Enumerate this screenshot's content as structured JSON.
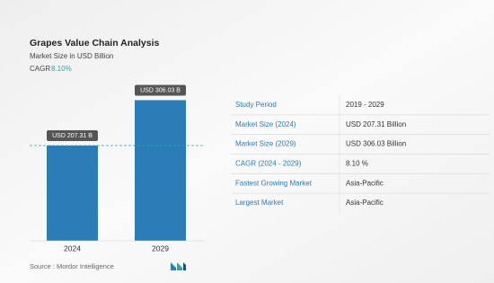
{
  "chart_data": {
    "type": "bar",
    "title": "Grapes Value Chain Analysis",
    "subtitle": "Market Size in USD Billion",
    "cagr_label": "CAGR",
    "cagr_value": "8.10%",
    "categories": [
      "2024",
      "2029"
    ],
    "values": [
      207.31,
      306.03
    ],
    "value_labels": [
      "USD 207.31 B",
      "USD 306.03 B"
    ],
    "color": "#2b7db8",
    "ylim": [
      0,
      350
    ]
  },
  "table": {
    "rows": [
      [
        "Study Period",
        "2019 - 2029"
      ],
      [
        "Market Size (2024)",
        "USD 207.31 Billion"
      ],
      [
        "Market Size (2029)",
        "USD 306.03 Billion"
      ],
      [
        "CAGR (2024 - 2029)",
        "8.10 %"
      ],
      [
        "Fastest Growing Market",
        "Asia-Pacific"
      ],
      [
        "Largest Market",
        "Asia-Pacific"
      ]
    ]
  },
  "source": "Source :  Mordor Intelligence"
}
